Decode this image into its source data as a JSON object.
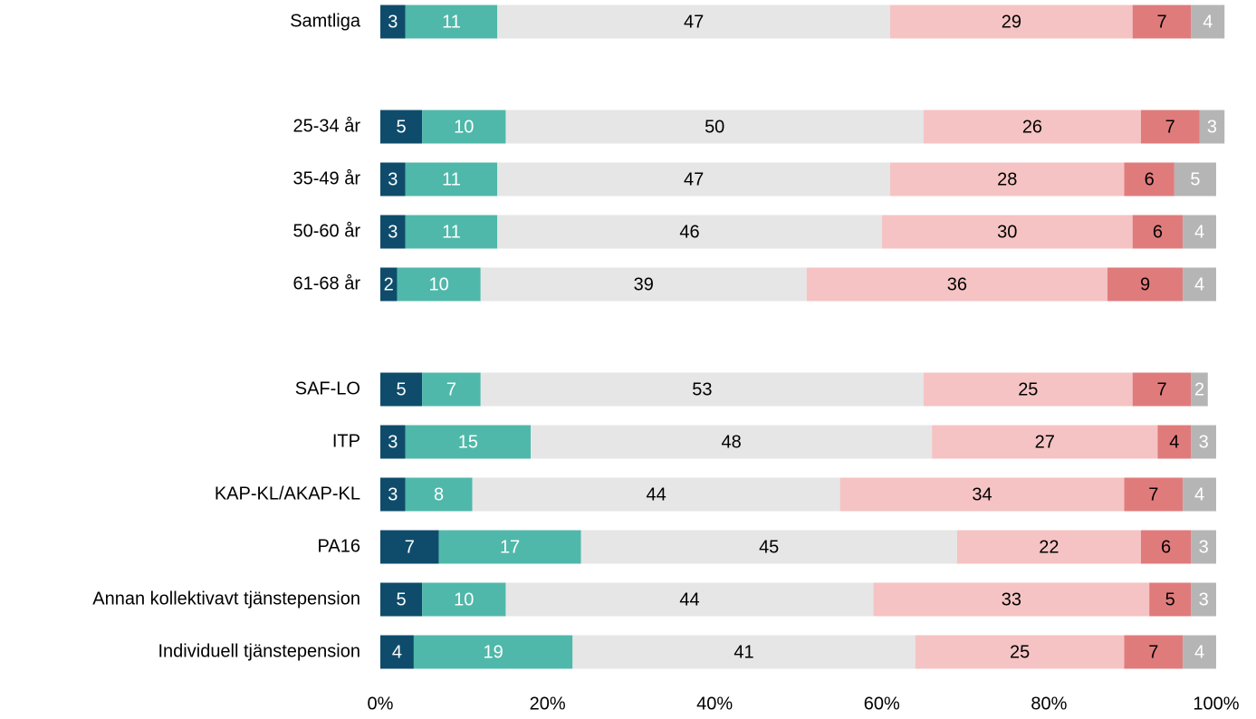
{
  "chart_data": {
    "type": "stacked_barh",
    "categories": [
      "Samtliga",
      null,
      "25-34 år",
      "35-49 år",
      "50-60 år",
      "61-68 år",
      null,
      "SAF-LO",
      "ITP",
      "KAP-KL/AKAP-KL",
      "PA16",
      "Annan kollektivavt tjänstepension",
      "Individuell tjänstepension"
    ],
    "series": [
      {
        "color": "#0f4c6b",
        "label_color": "#ffffff",
        "values": [
          3,
          null,
          5,
          3,
          3,
          2,
          null,
          5,
          3,
          3,
          7,
          5,
          4
        ]
      },
      {
        "color": "#4fb8aa",
        "label_color": "#ffffff",
        "values": [
          11,
          null,
          10,
          11,
          11,
          10,
          null,
          7,
          15,
          8,
          17,
          10,
          19
        ]
      },
      {
        "color": "#e6e6e6",
        "label_color": "#000000",
        "values": [
          47,
          null,
          50,
          47,
          46,
          39,
          null,
          53,
          48,
          44,
          45,
          44,
          41
        ]
      },
      {
        "color": "#f5c3c3",
        "label_color": "#000000",
        "values": [
          29,
          null,
          26,
          28,
          30,
          36,
          null,
          25,
          27,
          34,
          22,
          33,
          25
        ]
      },
      {
        "color": "#e07b7c",
        "label_color": "#000000",
        "values": [
          7,
          null,
          7,
          6,
          6,
          9,
          null,
          7,
          4,
          7,
          6,
          5,
          7
        ]
      },
      {
        "color": "#b5b5b5",
        "label_color": "#ffffff",
        "values": [
          4,
          null,
          3,
          5,
          4,
          4,
          null,
          2,
          3,
          4,
          3,
          3,
          4
        ]
      }
    ],
    "xlim": [
      0,
      100
    ],
    "xticks": [
      {
        "value": 0,
        "label": "0%"
      },
      {
        "value": 20,
        "label": "20%"
      },
      {
        "value": 40,
        "label": "40%"
      },
      {
        "value": 60,
        "label": "60%"
      },
      {
        "value": 80,
        "label": "80%"
      },
      {
        "value": 100,
        "label": "100%"
      }
    ]
  }
}
